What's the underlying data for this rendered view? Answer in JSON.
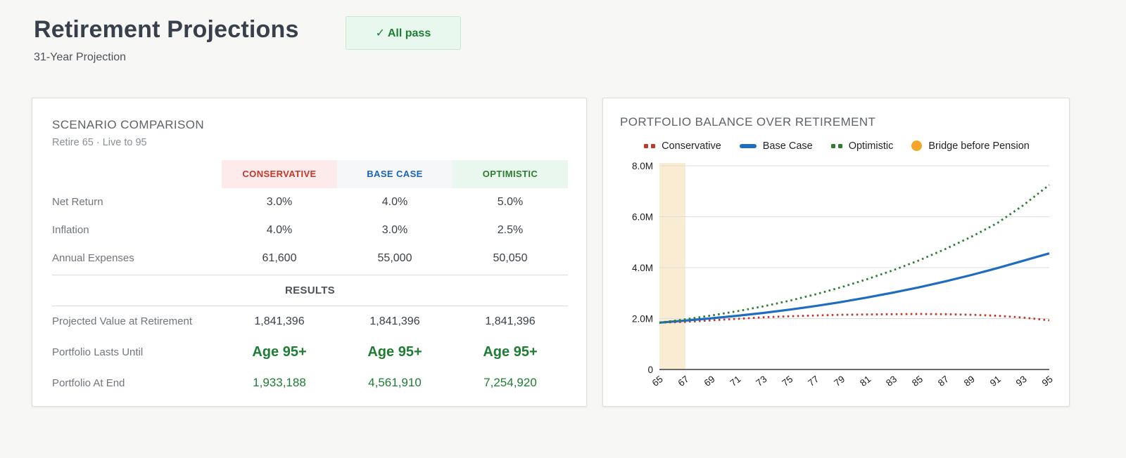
{
  "header": {
    "title": "Retirement Projections",
    "subtitle": "31-Year Projection",
    "badge": "✓ All pass"
  },
  "scenario_card": {
    "title": "SCENARIO COMPARISON",
    "subtitle": "Retire 65 · Live to 95",
    "columns": [
      "CONSERVATIVE",
      "BASE CASE",
      "OPTIMISTIC"
    ],
    "input_rows": [
      {
        "label": "Net Return",
        "values": [
          "3.0%",
          "4.0%",
          "5.0%"
        ]
      },
      {
        "label": "Inflation",
        "values": [
          "4.0%",
          "3.0%",
          "2.5%"
        ]
      },
      {
        "label": "Annual Expenses",
        "values": [
          "61,600",
          "55,000",
          "50,050"
        ]
      }
    ],
    "results_header": "RESULTS",
    "result_rows": [
      {
        "label": "Projected Value at Retirement",
        "values": [
          "1,841,396",
          "1,841,396",
          "1,841,396"
        ]
      },
      {
        "label": "Portfolio Lasts Until",
        "values": [
          "Age 95+",
          "Age 95+",
          "Age 95+"
        ]
      },
      {
        "label": "Portfolio At End",
        "values": [
          "1,933,188",
          "4,561,910",
          "7,254,920"
        ]
      }
    ]
  },
  "chart_card": {
    "title": "PORTFOLIO BALANCE OVER RETIREMENT",
    "legend": [
      {
        "label": "Conservative",
        "marker": "dotted",
        "color": "#c0392b"
      },
      {
        "label": "Base Case",
        "marker": "solid",
        "color": "#1f6dc1"
      },
      {
        "label": "Optimistic",
        "marker": "dotted",
        "color": "#2e7d32"
      },
      {
        "label": "Bridge before Pension",
        "marker": "circle",
        "color": "#f5a42c"
      }
    ]
  },
  "chart_data": {
    "type": "line",
    "title": "PORTFOLIO BALANCE OVER RETIREMENT",
    "x_unit": "age",
    "x": [
      65,
      67,
      69,
      71,
      73,
      75,
      77,
      79,
      81,
      83,
      85,
      87,
      89,
      91,
      93,
      95
    ],
    "series": [
      {
        "name": "Conservative",
        "color": "#c0392b",
        "style": "dotted",
        "values_millions": [
          1.84,
          1.87,
          1.93,
          1.99,
          2.05,
          2.09,
          2.12,
          2.15,
          2.16,
          2.17,
          2.18,
          2.17,
          2.15,
          2.11,
          2.04,
          1.93
        ]
      },
      {
        "name": "Base Case",
        "color": "#1f6dc1",
        "style": "solid",
        "values_millions": [
          1.84,
          1.92,
          2.01,
          2.11,
          2.22,
          2.35,
          2.49,
          2.65,
          2.83,
          3.02,
          3.23,
          3.46,
          3.71,
          3.98,
          4.27,
          4.56
        ]
      },
      {
        "name": "Optimistic",
        "color": "#2e7d32",
        "style": "dotted",
        "values_millions": [
          1.84,
          1.97,
          2.12,
          2.29,
          2.48,
          2.7,
          2.95,
          3.23,
          3.55,
          3.9,
          4.29,
          4.73,
          5.21,
          5.75,
          6.45,
          7.25
        ]
      }
    ],
    "band": {
      "label": "Bridge before Pension",
      "from": 65,
      "to": 67,
      "color": "#faecd2"
    },
    "xlim": [
      65,
      95
    ],
    "ylim_millions": [
      0,
      8
    ],
    "yticks": {
      "values_millions": [
        0,
        2,
        4,
        6,
        8
      ],
      "labels": [
        "0",
        "2.0M",
        "4.0M",
        "6.0M",
        "8.0M"
      ]
    },
    "xticks": [
      65,
      67,
      69,
      71,
      73,
      75,
      77,
      79,
      81,
      83,
      85,
      87,
      89,
      91,
      93,
      95
    ],
    "grid": true,
    "legend_position": "top-center"
  }
}
